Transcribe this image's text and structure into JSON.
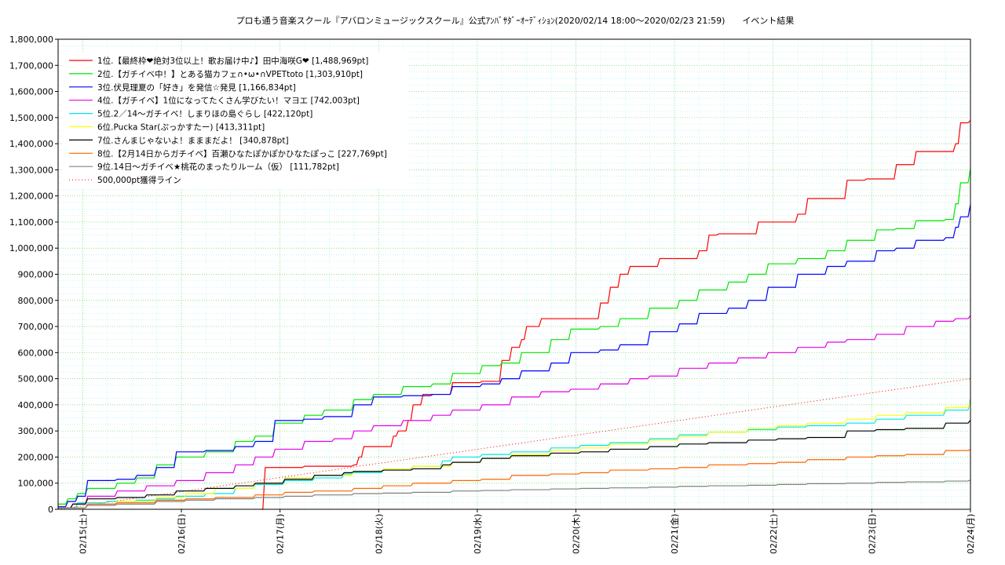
{
  "chart_data": {
    "type": "line",
    "title": "プロも通う音楽スクール『アバロンミュージックスクール』公式ｱﾝﾊﾞｻﾀﾞｰｵｰﾃﾞｨｼｮﾝ(2020/02/14 18:00〜2020/02/23 21:59)　　イベント結果",
    "xlabel": "",
    "ylabel": "",
    "ylim": [
      0,
      1800000
    ],
    "xlim": [
      0,
      9.25
    ],
    "y_ticks": [
      0,
      100000,
      200000,
      300000,
      400000,
      500000,
      600000,
      700000,
      800000,
      900000,
      1000000,
      1100000,
      1200000,
      1300000,
      1400000,
      1500000,
      1600000,
      1700000,
      1800000
    ],
    "y_tick_labels": [
      "0",
      "100,000",
      "200,000",
      "300,000",
      "400,000",
      "500,000",
      "600,000",
      "700,000",
      "800,000",
      "900,000",
      "1,000,000",
      "1,100,000",
      "1,200,000",
      "1,300,000",
      "1,400,000",
      "1,500,000",
      "1,600,000",
      "1,700,000",
      "1,800,000"
    ],
    "x_ticks": [
      0.25,
      1.25,
      2.25,
      3.25,
      4.25,
      5.25,
      6.25,
      7.25,
      8.25,
      9.25
    ],
    "x_tick_labels": [
      "02/15(土)",
      "02/16(日)",
      "02/17(月)",
      "02/18(火)",
      "02/19(水)",
      "02/20(木)",
      "02/21(金)",
      "02/22(土)",
      "02/23(日)",
      "02/24(月)"
    ],
    "grid": true,
    "legend_position": "top-left",
    "series": [
      {
        "name": "1位.【最終枠❤絶対3位以上！歌お届け中♪】田中海咲G❤ [1,488,969pt]",
        "color": "#ff0000",
        "x": [
          2.06,
          2.1,
          2.5,
          3.0,
          3.05,
          3.1,
          3.4,
          3.45,
          3.55,
          3.6,
          3.7,
          4.0,
          4.3,
          4.5,
          4.6,
          4.7,
          4.75,
          4.9,
          5.0,
          5.5,
          5.6,
          5.7,
          5.8,
          6.0,
          6.1,
          6.5,
          6.6,
          6.7,
          7.0,
          7.1,
          7.5,
          7.6,
          7.8,
          8.0,
          8.2,
          8.5,
          8.7,
          9.0,
          9.1,
          9.15,
          9.25
        ],
        "y": [
          0,
          160000,
          165000,
          170000,
          200000,
          240000,
          280000,
          300000,
          340000,
          400000,
          440000,
          485000,
          490000,
          570000,
          620000,
          650000,
          700000,
          730000,
          730000,
          790000,
          850000,
          900000,
          930000,
          930000,
          960000,
          990000,
          1050000,
          1055000,
          1055000,
          1100000,
          1130000,
          1190000,
          1190000,
          1260000,
          1265000,
          1320000,
          1370000,
          1370000,
          1400000,
          1480000,
          1489000
        ]
      },
      {
        "name": "2位.【ガチイベ中！】とある猫カフェ∩•ω•∩VPETtoto [1,303,910pt]",
        "color": "#00e600",
        "x": [
          0,
          0.1,
          0.2,
          0.3,
          0.6,
          0.8,
          1.0,
          1.2,
          1.5,
          1.8,
          2.0,
          2.2,
          2.5,
          2.7,
          3.0,
          3.2,
          3.5,
          3.8,
          4.0,
          4.3,
          4.5,
          4.7,
          5.0,
          5.2,
          5.5,
          5.7,
          6.0,
          6.3,
          6.5,
          6.8,
          7.0,
          7.2,
          7.5,
          7.8,
          8.0,
          8.3,
          8.5,
          8.7,
          9.0,
          9.1,
          9.15,
          9.25
        ],
        "y": [
          20000,
          40000,
          60000,
          80000,
          100000,
          120000,
          170000,
          200000,
          220000,
          260000,
          280000,
          330000,
          360000,
          380000,
          420000,
          440000,
          470000,
          480000,
          520000,
          550000,
          560000,
          600000,
          650000,
          690000,
          700000,
          730000,
          770000,
          800000,
          840000,
          870000,
          900000,
          940000,
          960000,
          990000,
          1030000,
          1070000,
          1075000,
          1105000,
          1110000,
          1170000,
          1250000,
          1304000
        ]
      },
      {
        "name": "3位.伏見理夏の「好き」を発信☆発見 [1,166,834pt]",
        "color": "#0000ff",
        "x": [
          0,
          0.1,
          0.2,
          0.3,
          0.6,
          0.8,
          1.0,
          1.2,
          1.5,
          1.8,
          2.0,
          2.2,
          2.5,
          2.7,
          3.0,
          3.2,
          3.5,
          3.8,
          4.0,
          4.3,
          4.5,
          4.7,
          5.0,
          5.2,
          5.5,
          5.7,
          6.0,
          6.3,
          6.5,
          6.8,
          7.0,
          7.2,
          7.5,
          7.8,
          8.0,
          8.3,
          8.5,
          8.7,
          9.0,
          9.1,
          9.15,
          9.25
        ],
        "y": [
          10000,
          30000,
          50000,
          110000,
          115000,
          130000,
          160000,
          220000,
          225000,
          240000,
          260000,
          340000,
          345000,
          355000,
          400000,
          430000,
          435000,
          440000,
          470000,
          480000,
          500000,
          530000,
          560000,
          600000,
          610000,
          630000,
          680000,
          710000,
          750000,
          770000,
          800000,
          850000,
          900000,
          930000,
          950000,
          990000,
          1000000,
          1030000,
          1040000,
          1080000,
          1120000,
          1167000
        ]
      },
      {
        "name": "4位.【ガチイベ】1位になってたくさん学びたい！マヨエ [742,003pt]",
        "color": "#e600e6",
        "x": [
          0,
          0.15,
          0.3,
          0.6,
          0.9,
          1.2,
          1.5,
          1.8,
          2.0,
          2.2,
          2.5,
          2.8,
          3.0,
          3.2,
          3.5,
          3.8,
          4.0,
          4.3,
          4.6,
          4.9,
          5.2,
          5.5,
          5.8,
          6.0,
          6.3,
          6.6,
          6.9,
          7.2,
          7.5,
          7.8,
          8.0,
          8.3,
          8.6,
          8.9,
          9.1,
          9.25
        ],
        "y": [
          5000,
          20000,
          50000,
          70000,
          90000,
          110000,
          140000,
          170000,
          200000,
          230000,
          260000,
          270000,
          300000,
          320000,
          340000,
          360000,
          380000,
          400000,
          430000,
          450000,
          460000,
          480000,
          500000,
          510000,
          540000,
          560000,
          580000,
          600000,
          620000,
          640000,
          650000,
          670000,
          700000,
          720000,
          730000,
          742000
        ]
      },
      {
        "name": "5位.2／14〜ガチイベ！しまりほの島ぐらし [422,120pt]",
        "color": "#00e6e6",
        "x": [
          0,
          0.2,
          0.5,
          0.8,
          1.0,
          1.2,
          1.5,
          1.8,
          2.0,
          2.3,
          2.6,
          2.9,
          3.0,
          3.3,
          3.6,
          3.9,
          4.0,
          4.3,
          4.6,
          5.0,
          5.3,
          5.6,
          6.0,
          6.3,
          6.6,
          7.0,
          7.3,
          7.6,
          8.0,
          8.3,
          8.6,
          9.0,
          9.25
        ],
        "y": [
          5000,
          25000,
          30000,
          35000,
          40000,
          50000,
          60000,
          80000,
          95000,
          110000,
          120000,
          135000,
          140000,
          150000,
          165000,
          185000,
          200000,
          210000,
          220000,
          235000,
          245000,
          255000,
          270000,
          285000,
          295000,
          305000,
          315000,
          320000,
          330000,
          345000,
          360000,
          380000,
          422000
        ]
      },
      {
        "name": "6位.Pucka Star(ぷっかすたー) [413,311pt]",
        "color": "#ffff00",
        "x": [
          0,
          0.3,
          0.6,
          1.0,
          1.3,
          1.6,
          2.0,
          2.3,
          2.6,
          3.0,
          3.3,
          3.6,
          4.0,
          4.3,
          4.6,
          5.0,
          5.3,
          5.6,
          6.0,
          6.3,
          6.6,
          7.0,
          7.3,
          7.6,
          8.0,
          8.3,
          8.6,
          9.0,
          9.25
        ],
        "y": [
          5000,
          20000,
          30000,
          45000,
          60000,
          80000,
          100000,
          120000,
          130000,
          145000,
          155000,
          165000,
          180000,
          195000,
          210000,
          225000,
          235000,
          250000,
          265000,
          280000,
          295000,
          310000,
          320000,
          330000,
          345000,
          360000,
          370000,
          390000,
          413000
        ]
      },
      {
        "name": "7位.さんまじゃないよ！まままだよ！ [340,878pt]",
        "color": "#000000",
        "x": [
          0,
          0.15,
          0.3,
          0.6,
          0.9,
          1.2,
          1.5,
          1.8,
          2.0,
          2.3,
          2.6,
          2.9,
          3.0,
          3.3,
          3.6,
          3.9,
          4.0,
          4.3,
          4.6,
          5.0,
          5.3,
          5.6,
          6.0,
          6.3,
          6.6,
          7.0,
          7.3,
          7.6,
          8.0,
          8.3,
          8.6,
          9.0,
          9.25
        ],
        "y": [
          5000,
          20000,
          40000,
          45000,
          55000,
          70000,
          80000,
          90000,
          100000,
          115000,
          130000,
          140000,
          145000,
          150000,
          155000,
          170000,
          180000,
          195000,
          205000,
          215000,
          220000,
          230000,
          240000,
          250000,
          255000,
          265000,
          270000,
          275000,
          300000,
          305000,
          310000,
          330000,
          341000
        ]
      },
      {
        "name": "8位.【2月14日からガチイベ】百瀬ひなたぽかぽかひなたぽっこ [227,769pt]",
        "color": "#ff6600",
        "x": [
          0,
          0.3,
          0.6,
          1.0,
          1.3,
          1.6,
          2.0,
          2.3,
          2.6,
          3.0,
          3.3,
          3.6,
          4.0,
          4.3,
          4.6,
          5.0,
          5.3,
          5.6,
          6.0,
          6.3,
          6.6,
          7.0,
          7.3,
          7.6,
          8.0,
          8.3,
          8.6,
          9.0,
          9.25
        ],
        "y": [
          5000,
          20000,
          25000,
          35000,
          40000,
          45000,
          55000,
          65000,
          70000,
          80000,
          90000,
          100000,
          110000,
          115000,
          130000,
          135000,
          140000,
          150000,
          155000,
          160000,
          170000,
          175000,
          180000,
          190000,
          200000,
          205000,
          210000,
          225000,
          228000
        ]
      },
      {
        "name": "9位.14日〜ガチイベ★桃花のまったりルーム（仮） [111,782pt]",
        "color": "#808080",
        "x": [
          0,
          0.3,
          0.6,
          1.0,
          1.3,
          1.6,
          2.0,
          2.3,
          2.6,
          3.0,
          3.3,
          3.6,
          4.0,
          4.3,
          4.6,
          5.0,
          5.3,
          5.6,
          6.0,
          6.3,
          6.6,
          7.0,
          7.3,
          7.6,
          8.0,
          8.3,
          8.6,
          9.0,
          9.25
        ],
        "y": [
          5000,
          15000,
          20000,
          30000,
          35000,
          40000,
          45000,
          50000,
          55000,
          60000,
          62000,
          65000,
          70000,
          72000,
          75000,
          78000,
          80000,
          82000,
          85000,
          88000,
          90000,
          92000,
          95000,
          98000,
          100000,
          103000,
          105000,
          108000,
          112000
        ]
      }
    ],
    "reference_lines": [
      {
        "name": "500,000pt獲得ライン",
        "color": "#ff0000",
        "style": "dotted",
        "x": [
          0,
          9.25
        ],
        "y": [
          0,
          500000
        ]
      }
    ]
  }
}
